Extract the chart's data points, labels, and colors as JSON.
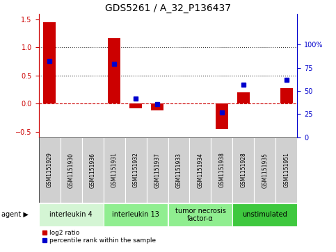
{
  "title": "GDS5261 / A_32_P136437",
  "samples": [
    "GSM1151929",
    "GSM1151930",
    "GSM1151936",
    "GSM1151931",
    "GSM1151932",
    "GSM1151937",
    "GSM1151933",
    "GSM1151934",
    "GSM1151938",
    "GSM1151928",
    "GSM1151935",
    "GSM1151951"
  ],
  "log2_ratio": [
    1.45,
    0.0,
    0.0,
    1.17,
    -0.08,
    -0.12,
    0.0,
    0.0,
    -0.45,
    0.2,
    0.0,
    0.28
  ],
  "percentile_rank": [
    82,
    null,
    null,
    79,
    42,
    36,
    null,
    null,
    27,
    57,
    null,
    62
  ],
  "agents": [
    {
      "label": "interleukin 4",
      "start": 0,
      "end": 3,
      "color": "#d4f5d4"
    },
    {
      "label": "interleukin 13",
      "start": 3,
      "end": 6,
      "color": "#90ee90"
    },
    {
      "label": "tumor necrosis\nfactor-α",
      "start": 6,
      "end": 9,
      "color": "#90ee90"
    },
    {
      "label": "unstimulated",
      "start": 9,
      "end": 12,
      "color": "#3ec83e"
    }
  ],
  "ylim_left": [
    -0.6,
    1.6
  ],
  "ylim_right": [
    0,
    133.33
  ],
  "yticks_left": [
    -0.5,
    0.0,
    0.5,
    1.0,
    1.5
  ],
  "yticks_right": [
    0,
    25,
    50,
    75,
    100
  ],
  "bar_color_red": "#cc0000",
  "bar_color_blue": "#0000cc",
  "hline_dash_color": "#cc0000",
  "dotline_color": "#333333",
  "bg_color": "#ffffff",
  "sample_box_color": "#d0d0d0",
  "tick_fontsize": 7,
  "title_fontsize": 10
}
